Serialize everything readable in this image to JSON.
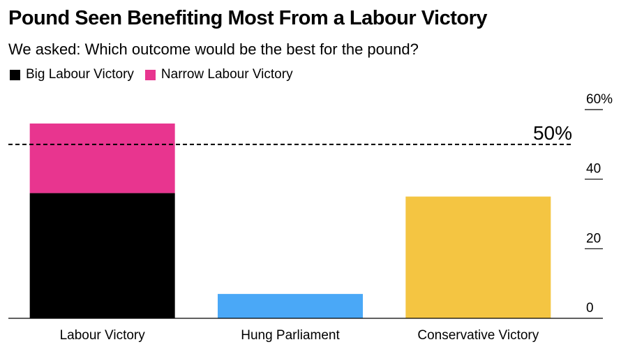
{
  "title": "Pound Seen Benefiting Most From a Labour Victory",
  "subtitle": "We asked: Which outcome would be the best for the pound?",
  "legend": [
    {
      "label": "Big Labour Victory",
      "color": "#000000"
    },
    {
      "label": "Narrow Labour Victory",
      "color": "#e8358f"
    }
  ],
  "chart_data": {
    "type": "bar",
    "stacked": true,
    "categories": [
      "Labour Victory",
      "Hung Parliament",
      "Conservative Victory"
    ],
    "series": [
      {
        "name": "Big Labour Victory",
        "color": "#000000",
        "values": [
          36,
          0,
          0
        ]
      },
      {
        "name": "Narrow Labour Victory",
        "color": "#e8358f",
        "values": [
          20,
          0,
          0
        ]
      },
      {
        "color": "#4aa8f7",
        "values": [
          0,
          7,
          0
        ]
      },
      {
        "color": "#f4c542",
        "values": [
          0,
          0,
          35
        ]
      }
    ],
    "ylim": [
      0,
      60
    ],
    "yticks": [
      {
        "value": 0,
        "label": "0"
      },
      {
        "value": 20,
        "label": "20"
      },
      {
        "value": 40,
        "label": "40"
      },
      {
        "value": 60,
        "label": "60%"
      }
    ],
    "reference_line": {
      "value": 50,
      "label": "50%",
      "style": "dashed"
    },
    "axis_position": "right",
    "grid": false
  }
}
